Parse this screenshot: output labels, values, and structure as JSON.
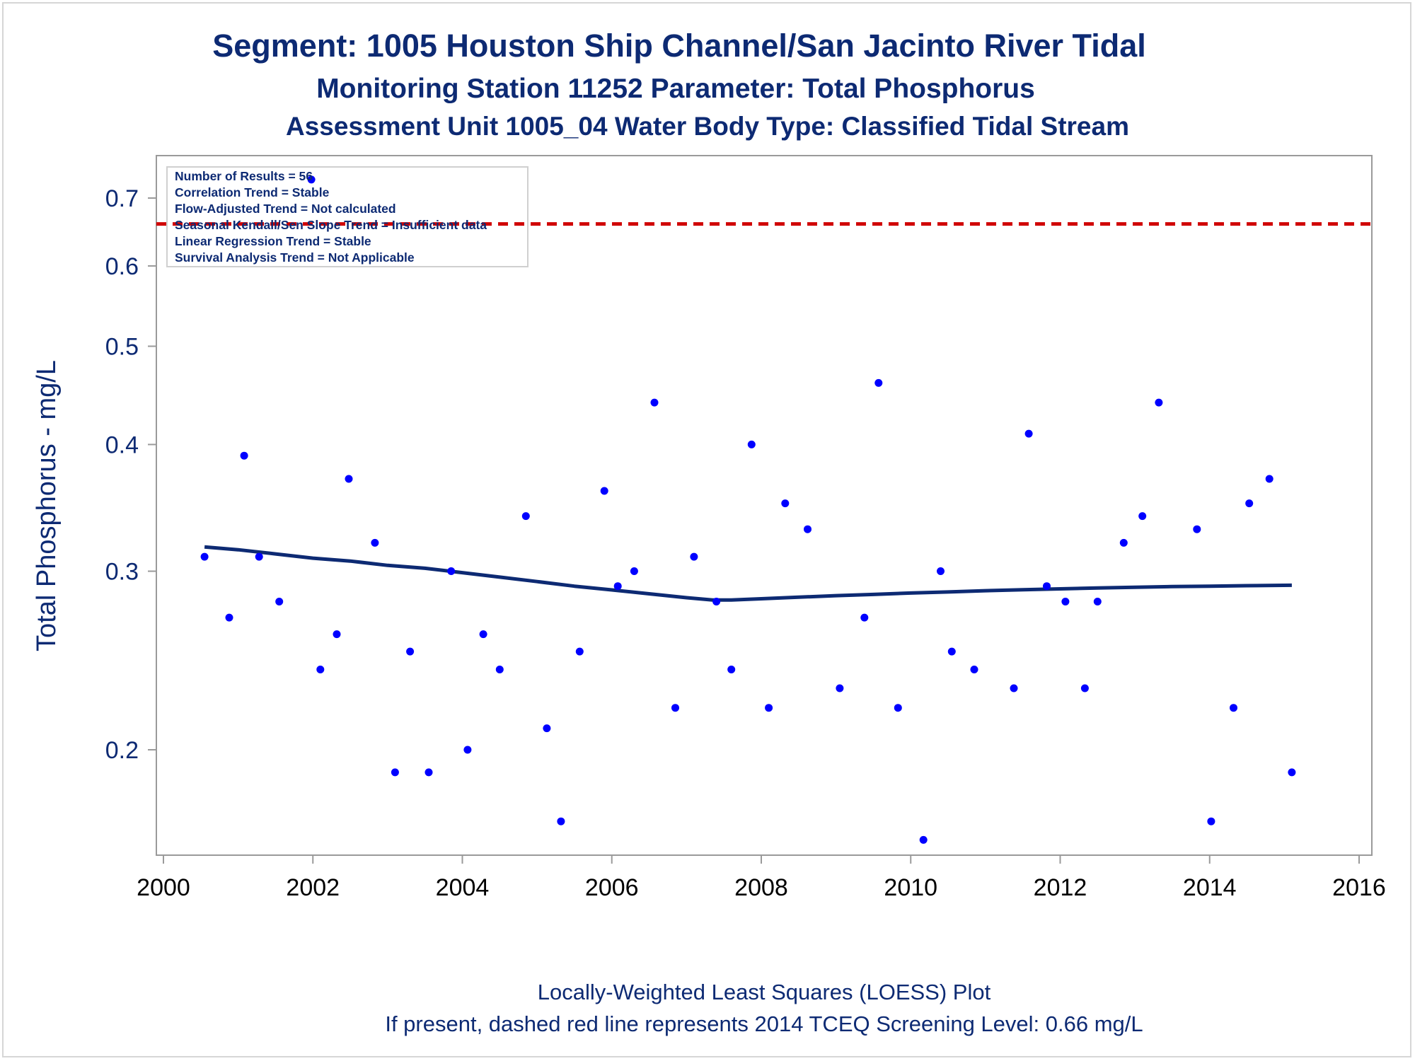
{
  "titles": {
    "line1": "Segment: 1005  Houston Ship Channel/San Jacinto River Tidal",
    "line2": "Monitoring Station 11252 Parameter: Total Phosphorus",
    "line3": "Assessment Unit 1005_04   Water Body Type: Classified Tidal Stream"
  },
  "stats_box": [
    "Number of Results = 56",
    "Correlation Trend = Stable",
    "Flow-Adjusted Trend = Not calculated",
    "Seasonal Kendall/Sen Slope Trend = Insufficient data",
    "Linear Regression Trend = Stable",
    "Survival Analysis Trend = Not Applicable"
  ],
  "footnotes": {
    "line1": "Locally-Weighted Least Squares (LOESS) Plot",
    "line2": "If present, dashed red line represents 2014 TCEQ Screening Level: 0.66 mg/L"
  },
  "colors": {
    "title": "#0d2a73",
    "points": "#0000ff",
    "loess": "#0d2a73",
    "screening": "#d00000",
    "axis": "#9a9a9a"
  },
  "chart_data": {
    "type": "scatter",
    "ylabel": "Total Phosphorus - mg/L",
    "xlabel": "",
    "y_scale": "log",
    "xlim": [
      2000,
      2016
    ],
    "ylim": [
      0.155,
      0.74
    ],
    "x_ticks": [
      2000,
      2002,
      2004,
      2006,
      2008,
      2010,
      2012,
      2014,
      2016
    ],
    "y_ticks": [
      0.2,
      0.3,
      0.4,
      0.5,
      0.6,
      0.7
    ],
    "screening_level": 0.66,
    "series": [
      {
        "type": "scatter",
        "points": [
          [
            2000.55,
            0.31
          ],
          [
            2000.88,
            0.27
          ],
          [
            2001.08,
            0.39
          ],
          [
            2001.28,
            0.31
          ],
          [
            2001.55,
            0.28
          ],
          [
            2001.98,
            0.73
          ],
          [
            2002.1,
            0.24
          ],
          [
            2002.32,
            0.26
          ],
          [
            2002.48,
            0.37
          ],
          [
            2002.83,
            0.32
          ],
          [
            2003.1,
            0.19
          ],
          [
            2003.3,
            0.25
          ],
          [
            2003.55,
            0.19
          ],
          [
            2003.85,
            0.3
          ],
          [
            2004.07,
            0.2
          ],
          [
            2004.28,
            0.26
          ],
          [
            2004.5,
            0.24
          ],
          [
            2004.85,
            0.34
          ],
          [
            2005.13,
            0.21
          ],
          [
            2005.32,
            0.17
          ],
          [
            2005.57,
            0.25
          ],
          [
            2005.9,
            0.36
          ],
          [
            2006.08,
            0.29
          ],
          [
            2006.3,
            0.3
          ],
          [
            2006.57,
            0.44
          ],
          [
            2006.85,
            0.22
          ],
          [
            2007.1,
            0.31
          ],
          [
            2007.4,
            0.28
          ],
          [
            2007.6,
            0.24
          ],
          [
            2007.87,
            0.4
          ],
          [
            2008.1,
            0.22
          ],
          [
            2008.32,
            0.35
          ],
          [
            2008.62,
            0.33
          ],
          [
            2009.05,
            0.23
          ],
          [
            2009.38,
            0.27
          ],
          [
            2009.57,
            0.46
          ],
          [
            2009.83,
            0.22
          ],
          [
            2010.17,
            0.163
          ],
          [
            2010.4,
            0.3
          ],
          [
            2010.55,
            0.25
          ],
          [
            2010.85,
            0.24
          ],
          [
            2011.38,
            0.23
          ],
          [
            2011.58,
            0.41
          ],
          [
            2011.82,
            0.29
          ],
          [
            2012.07,
            0.28
          ],
          [
            2012.33,
            0.23
          ],
          [
            2012.5,
            0.28
          ],
          [
            2012.85,
            0.32
          ],
          [
            2013.1,
            0.34
          ],
          [
            2013.32,
            0.44
          ],
          [
            2013.83,
            0.33
          ],
          [
            2014.02,
            0.17
          ],
          [
            2014.32,
            0.22
          ],
          [
            2014.53,
            0.35
          ],
          [
            2014.8,
            0.37
          ],
          [
            2015.1,
            0.19
          ]
        ]
      },
      {
        "type": "line",
        "points": [
          [
            2000.55,
            0.317
          ],
          [
            2001.0,
            0.315
          ],
          [
            2001.5,
            0.312
          ],
          [
            2002.0,
            0.309
          ],
          [
            2002.5,
            0.307
          ],
          [
            2003.0,
            0.304
          ],
          [
            2003.5,
            0.302
          ],
          [
            2004.0,
            0.299
          ],
          [
            2004.5,
            0.296
          ],
          [
            2005.0,
            0.293
          ],
          [
            2005.5,
            0.29
          ],
          [
            2006.0,
            0.2875
          ],
          [
            2006.5,
            0.285
          ],
          [
            2007.0,
            0.2825
          ],
          [
            2007.35,
            0.281
          ],
          [
            2007.6,
            0.281
          ],
          [
            2008.0,
            0.2818
          ],
          [
            2008.5,
            0.2828
          ],
          [
            2009.0,
            0.2838
          ],
          [
            2009.5,
            0.2846
          ],
          [
            2010.0,
            0.2855
          ],
          [
            2010.5,
            0.2862
          ],
          [
            2011.0,
            0.287
          ],
          [
            2011.5,
            0.2876
          ],
          [
            2012.0,
            0.2882
          ],
          [
            2012.5,
            0.2888
          ],
          [
            2013.0,
            0.2893
          ],
          [
            2013.5,
            0.2897
          ],
          [
            2014.0,
            0.29
          ],
          [
            2014.5,
            0.2903
          ],
          [
            2015.1,
            0.2906
          ]
        ]
      }
    ]
  }
}
